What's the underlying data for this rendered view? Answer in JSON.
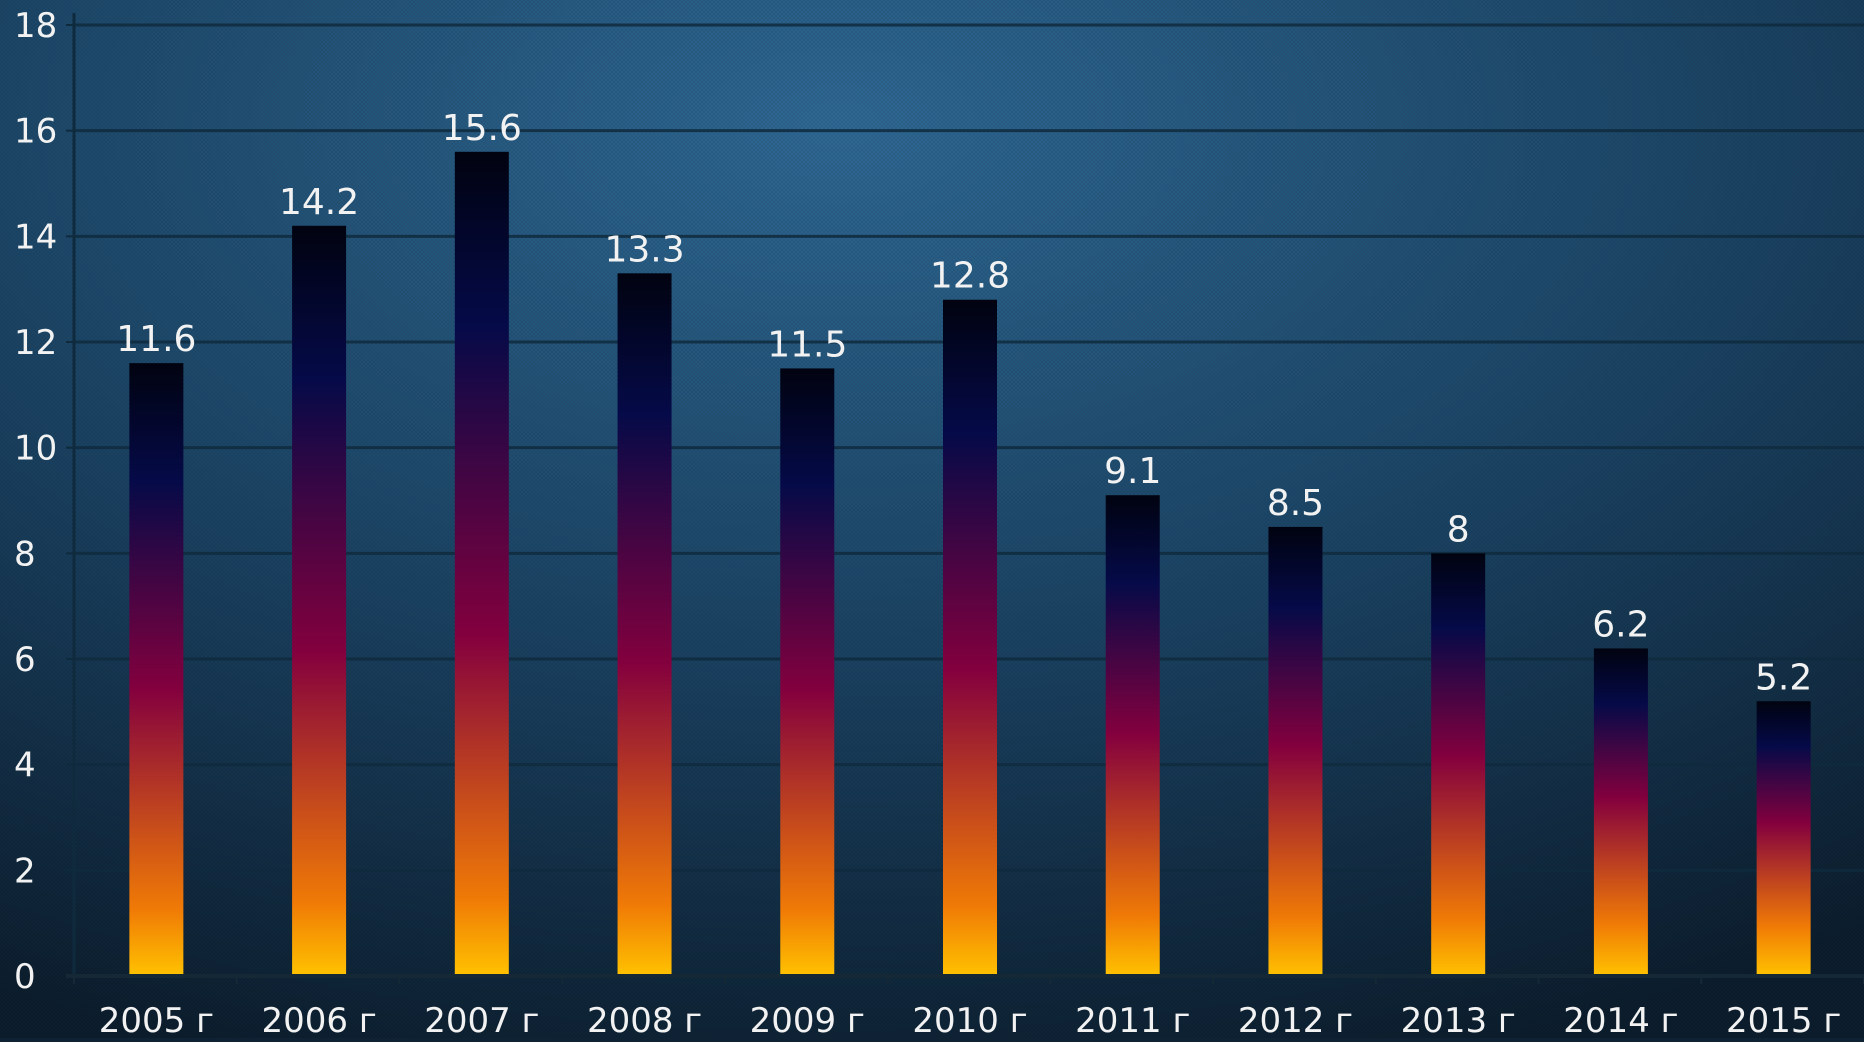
{
  "chart_data": {
    "type": "bar",
    "title": "",
    "xlabel": "",
    "ylabel": "",
    "categories": [
      "2005 г",
      "2006 г",
      "2007 г",
      "2008 г",
      "2009 г",
      "2010 г",
      "2011 г",
      "2012 г",
      "2013 г",
      "2014 г",
      "2015 г"
    ],
    "values": [
      11.6,
      14.2,
      15.6,
      13.3,
      11.5,
      12.8,
      9.1,
      8.5,
      8,
      6.2,
      5.2
    ],
    "data_labels": [
      "11.6",
      "14.2",
      "15.6",
      "13.3",
      "11.5",
      "12.8",
      "9.1",
      "8.5",
      "8",
      "6.2",
      "5.2"
    ],
    "y_ticks": [
      "0",
      "2",
      "4",
      "6",
      "8",
      "10",
      "12",
      "14",
      "16",
      "18"
    ],
    "ylim": [
      0,
      18
    ],
    "grid": true,
    "legend": "none",
    "colors": {
      "background_center": "#2f6a96",
      "background_edge": "#0c1e2e",
      "grid": "#0f2a3d",
      "bar_top": "#010310",
      "bar_upper": "#050a48",
      "bar_mid": "#83003e",
      "bar_low": "#f07a06",
      "bar_base": "#ffc200",
      "text": "#f2f2f2"
    }
  }
}
